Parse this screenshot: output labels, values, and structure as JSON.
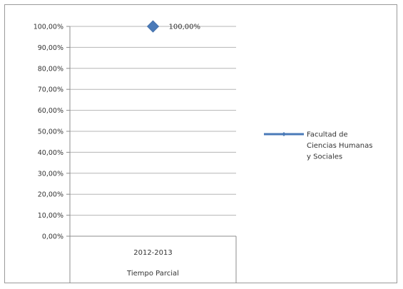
{
  "chart_data": {
    "type": "line",
    "title": "",
    "xlabel": "",
    "ylabel": "",
    "categories": [
      [
        "2012-2013",
        "Tiempo Parcial"
      ]
    ],
    "series": [
      {
        "name": "Facultad de Ciencias Humanas y Sociales",
        "values": [
          100.0
        ],
        "color": "#4a7ab8",
        "marker": "diamond",
        "data_labels": [
          "100,00%"
        ]
      }
    ],
    "ylim": [
      0,
      100
    ],
    "y_ticks": [
      "0,00%",
      "10,00%",
      "20,00%",
      "30,00%",
      "40,00%",
      "50,00%",
      "60,00%",
      "70,00%",
      "80,00%",
      "90,00%",
      "100,00%"
    ],
    "grid": true,
    "legend_position": "right"
  },
  "legend": {
    "lines": [
      "Facultad de",
      "Ciencias Humanas",
      "y Sociales"
    ]
  }
}
